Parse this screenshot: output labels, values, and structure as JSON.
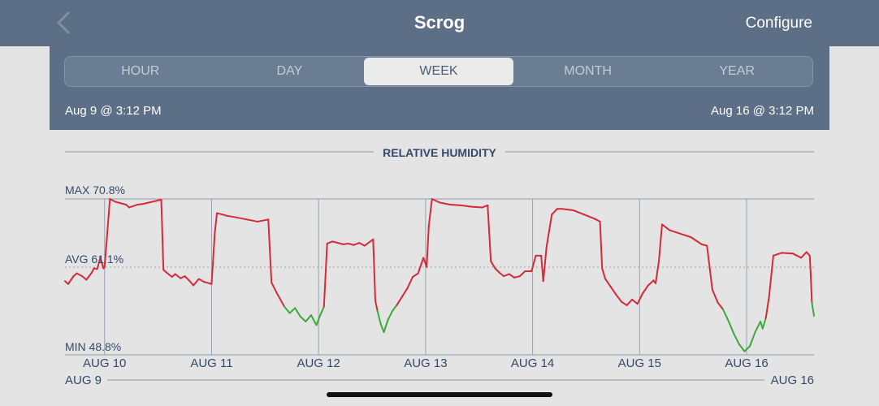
{
  "nav": {
    "title": "Scrog",
    "configure_label": "Configure",
    "back_icon": "chevron-left-icon"
  },
  "range": {
    "tabs": [
      {
        "label": "HOUR",
        "active": false
      },
      {
        "label": "DAY",
        "active": false
      },
      {
        "label": "WEEK",
        "active": true
      },
      {
        "label": "MONTH",
        "active": false
      },
      {
        "label": "YEAR",
        "active": false
      }
    ],
    "start_label": "Aug 9 @ 3:12 PM",
    "end_label": "Aug 16 @ 3:12 PM"
  },
  "colors": {
    "header_bg": "#5c6f86",
    "line_high": "#d42a3a",
    "line_low": "#3aaa3a",
    "label_text": "#34496a"
  },
  "chart_data": {
    "type": "line",
    "title": "RELATIVE HUMIDITY",
    "max_label": "MAX 70.8%",
    "avg_label": "AVG 61.1%",
    "min_label": "MIN 48.8%",
    "max": 70.8,
    "avg": 61.1,
    "min": 48.8,
    "low_threshold": 55.5,
    "y_unit": "%",
    "x_start_label": "AUG 9",
    "x_end_label": "AUG 16",
    "x_range_days": [
      0,
      7
    ],
    "day_ticks": [
      {
        "label": "AUG 10",
        "x": 0.37
      },
      {
        "label": "AUG 11",
        "x": 1.37
      },
      {
        "label": "AUG 12",
        "x": 2.37
      },
      {
        "label": "AUG 13",
        "x": 3.37
      },
      {
        "label": "AUG 14",
        "x": 4.37
      },
      {
        "label": "AUG 15",
        "x": 5.37
      },
      {
        "label": "AUG 16",
        "x": 6.37
      }
    ],
    "series": [
      {
        "points": [
          [
            0.0,
            59.2
          ],
          [
            0.03,
            58.8
          ],
          [
            0.08,
            59.9
          ],
          [
            0.11,
            60.3
          ],
          [
            0.16,
            59.9
          ],
          [
            0.2,
            59.4
          ],
          [
            0.25,
            60.4
          ],
          [
            0.27,
            61.0
          ],
          [
            0.3,
            60.9
          ],
          [
            0.33,
            62.5
          ],
          [
            0.36,
            61.0
          ],
          [
            0.37,
            61.2
          ],
          [
            0.39,
            65.0
          ],
          [
            0.42,
            70.8
          ],
          [
            0.47,
            70.4
          ],
          [
            0.52,
            70.2
          ],
          [
            0.57,
            70.0
          ],
          [
            0.6,
            69.6
          ],
          [
            0.68,
            70.0
          ],
          [
            0.73,
            70.1
          ],
          [
            0.9,
            70.7
          ],
          [
            0.92,
            60.8
          ],
          [
            0.95,
            60.4
          ],
          [
            1.0,
            59.8
          ],
          [
            1.03,
            60.2
          ],
          [
            1.08,
            59.6
          ],
          [
            1.12,
            59.9
          ],
          [
            1.16,
            59.3
          ],
          [
            1.2,
            58.6
          ],
          [
            1.25,
            59.5
          ],
          [
            1.3,
            59.1
          ],
          [
            1.37,
            58.8
          ],
          [
            1.4,
            66.0
          ],
          [
            1.42,
            68.8
          ],
          [
            1.47,
            68.6
          ],
          [
            1.52,
            68.4
          ],
          [
            1.6,
            68.2
          ],
          [
            1.7,
            67.9
          ],
          [
            1.8,
            67.6
          ],
          [
            1.9,
            67.9
          ],
          [
            1.93,
            59.0
          ],
          [
            1.98,
            57.5
          ],
          [
            2.05,
            55.6
          ],
          [
            2.1,
            54.7
          ],
          [
            2.15,
            55.4
          ],
          [
            2.2,
            54.2
          ],
          [
            2.25,
            53.5
          ],
          [
            2.3,
            54.4
          ],
          [
            2.35,
            53.0
          ],
          [
            2.38,
            54.2
          ],
          [
            2.42,
            55.6
          ],
          [
            2.45,
            64.5
          ],
          [
            2.5,
            64.8
          ],
          [
            2.55,
            64.6
          ],
          [
            2.6,
            64.4
          ],
          [
            2.65,
            64.5
          ],
          [
            2.7,
            64.3
          ],
          [
            2.75,
            64.6
          ],
          [
            2.8,
            64.2
          ],
          [
            2.88,
            65.1
          ],
          [
            2.9,
            56.5
          ],
          [
            2.92,
            55.0
          ],
          [
            2.95,
            53.2
          ],
          [
            2.98,
            52.0
          ],
          [
            3.02,
            53.8
          ],
          [
            3.06,
            55.0
          ],
          [
            3.1,
            55.8
          ],
          [
            3.15,
            57.0
          ],
          [
            3.2,
            58.2
          ],
          [
            3.25,
            59.8
          ],
          [
            3.3,
            60.3
          ],
          [
            3.35,
            62.5
          ],
          [
            3.38,
            61.2
          ],
          [
            3.4,
            67.0
          ],
          [
            3.43,
            70.8
          ],
          [
            3.5,
            70.3
          ],
          [
            3.6,
            70.0
          ],
          [
            3.7,
            69.9
          ],
          [
            3.8,
            69.7
          ],
          [
            3.9,
            69.6
          ],
          [
            3.95,
            69.9
          ],
          [
            3.98,
            62.0
          ],
          [
            4.02,
            61.0
          ],
          [
            4.06,
            60.4
          ],
          [
            4.1,
            59.9
          ],
          [
            4.15,
            60.2
          ],
          [
            4.2,
            59.7
          ],
          [
            4.25,
            59.9
          ],
          [
            4.3,
            60.6
          ],
          [
            4.36,
            60.6
          ],
          [
            4.4,
            62.8
          ],
          [
            4.45,
            62.8
          ],
          [
            4.47,
            59.2
          ],
          [
            4.5,
            64.0
          ],
          [
            4.55,
            68.6
          ],
          [
            4.6,
            69.4
          ],
          [
            4.65,
            69.4
          ],
          [
            4.75,
            69.2
          ],
          [
            4.85,
            68.6
          ],
          [
            4.95,
            68.0
          ],
          [
            5.0,
            67.6
          ],
          [
            5.02,
            61.0
          ],
          [
            5.05,
            59.5
          ],
          [
            5.1,
            58.4
          ],
          [
            5.15,
            57.3
          ],
          [
            5.2,
            56.3
          ],
          [
            5.25,
            55.8
          ],
          [
            5.3,
            56.6
          ],
          [
            5.35,
            56.0
          ],
          [
            5.4,
            57.5
          ],
          [
            5.45,
            58.6
          ],
          [
            5.5,
            59.3
          ],
          [
            5.52,
            58.9
          ],
          [
            5.55,
            62.0
          ],
          [
            5.58,
            67.2
          ],
          [
            5.65,
            66.4
          ],
          [
            5.75,
            65.9
          ],
          [
            5.85,
            65.4
          ],
          [
            5.95,
            64.4
          ],
          [
            6.0,
            64.2
          ],
          [
            6.05,
            58.0
          ],
          [
            6.1,
            56.2
          ],
          [
            6.15,
            55.2
          ],
          [
            6.2,
            53.6
          ],
          [
            6.25,
            51.8
          ],
          [
            6.3,
            50.3
          ],
          [
            6.35,
            49.3
          ],
          [
            6.4,
            50.0
          ],
          [
            6.45,
            52.0
          ],
          [
            6.5,
            53.5
          ],
          [
            6.52,
            52.5
          ],
          [
            6.55,
            54.0
          ],
          [
            6.58,
            57.0
          ],
          [
            6.62,
            62.8
          ],
          [
            6.7,
            63.2
          ],
          [
            6.8,
            63.1
          ],
          [
            6.88,
            62.5
          ],
          [
            6.93,
            63.3
          ],
          [
            6.96,
            62.8
          ],
          [
            6.97,
            60.0
          ],
          [
            6.98,
            56.2
          ],
          [
            7.0,
            54.3
          ]
        ]
      }
    ]
  }
}
